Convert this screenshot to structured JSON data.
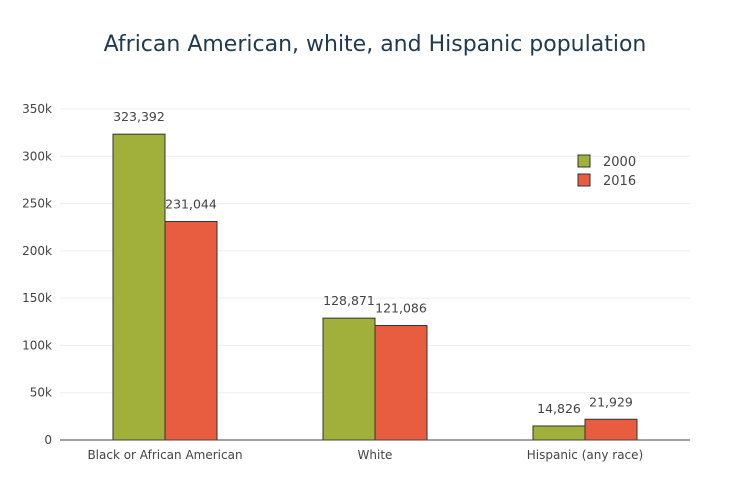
{
  "chart_data": {
    "type": "bar",
    "title": "African American, white, and Hispanic population",
    "categories": [
      "Black or African American",
      "White",
      "Hispanic (any race)"
    ],
    "series": [
      {
        "name": "2000",
        "values": [
          323392,
          128871,
          14826
        ],
        "labels": [
          "323,392",
          "128,871",
          "14,826"
        ],
        "color": "#a0b03a"
      },
      {
        "name": "2016",
        "values": [
          231044,
          121086,
          21929
        ],
        "labels": [
          "231,044",
          "121,086",
          "21,929"
        ],
        "color": "#e85c40"
      }
    ],
    "yticks": [
      0,
      50000,
      100000,
      150000,
      200000,
      250000,
      300000,
      350000
    ],
    "ytick_labels": [
      "0",
      "50k",
      "100k",
      "150k",
      "200k",
      "250k",
      "300k",
      "350k"
    ],
    "ylim": [
      0,
      350000
    ],
    "xlabel": "",
    "ylabel": "",
    "grid": true,
    "legend": "top-right"
  }
}
